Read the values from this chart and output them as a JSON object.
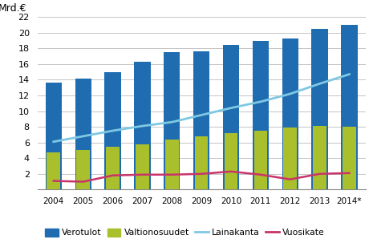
{
  "years": [
    2004,
    2005,
    2006,
    2007,
    2008,
    2009,
    2010,
    2011,
    2012,
    2013,
    2014
  ],
  "year_labels": [
    "2004",
    "2005",
    "2006",
    "2007",
    "2008",
    "2009",
    "2010",
    "2011",
    "2012",
    "2013",
    "2014*"
  ],
  "verotulot": [
    13.6,
    14.1,
    15.0,
    16.3,
    17.5,
    17.6,
    18.4,
    19.0,
    19.3,
    20.5,
    21.0
  ],
  "valtionosuudet": [
    4.7,
    5.0,
    5.5,
    5.8,
    6.4,
    6.8,
    7.2,
    7.5,
    7.9,
    8.1,
    8.0
  ],
  "lainakanta": [
    6.1,
    6.8,
    7.5,
    8.1,
    8.6,
    9.5,
    10.4,
    11.2,
    12.2,
    13.5,
    14.7
  ],
  "vuosikate": [
    1.1,
    1.0,
    1.8,
    1.9,
    1.9,
    2.0,
    2.3,
    1.9,
    1.3,
    2.0,
    2.1
  ],
  "bar_color_verotulot": "#1F6CB0",
  "bar_color_valtionosuudet": "#AABF2C",
  "line_color_lainakanta": "#7EC8E3",
  "line_color_vuosikate": "#C8336A",
  "ylabel": "Mrd.€",
  "ylim": [
    0,
    22
  ],
  "yticks": [
    0,
    2,
    4,
    6,
    8,
    10,
    12,
    14,
    16,
    18,
    20,
    22
  ],
  "legend_labels": [
    "Verotulot",
    "Valtionosuudet",
    "Lainakanta",
    "Vuosikate"
  ],
  "background_color": "#ffffff",
  "grid_color": "#bbbbbb"
}
